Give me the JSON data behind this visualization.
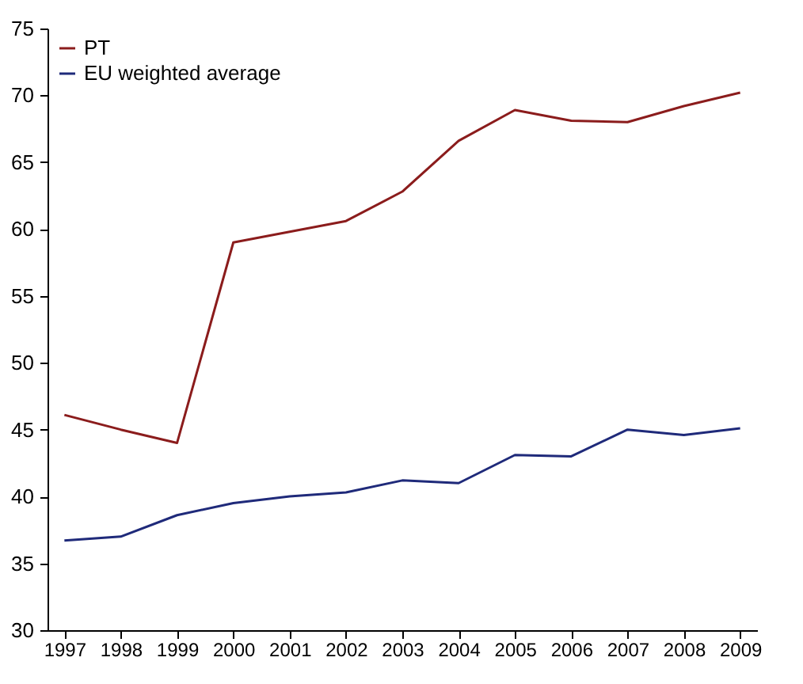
{
  "chart_data": {
    "type": "line",
    "categories": [
      "1997",
      "1998",
      "1999",
      "2000",
      "2001",
      "2002",
      "2003",
      "2004",
      "2005",
      "2006",
      "2007",
      "2008",
      "2009"
    ],
    "series": [
      {
        "name": "PT",
        "color": "#8b1c1c",
        "values": [
          46.1,
          45.0,
          44.0,
          59.0,
          59.8,
          60.6,
          62.8,
          66.6,
          68.9,
          68.1,
          68.0,
          69.2,
          70.2
        ]
      },
      {
        "name": "EU weighted average",
        "color": "#1f2a7a",
        "values": [
          36.7,
          37.0,
          38.6,
          39.5,
          40.0,
          40.3,
          41.2,
          41.0,
          43.1,
          43.0,
          45.0,
          44.6,
          45.1
        ]
      }
    ],
    "ylim": [
      30,
      75
    ],
    "yticks": [
      30,
      35,
      40,
      45,
      50,
      55,
      60,
      65,
      70,
      75
    ],
    "grid": false,
    "legend": "top left",
    "marker": "none",
    "line_style": "solid"
  }
}
